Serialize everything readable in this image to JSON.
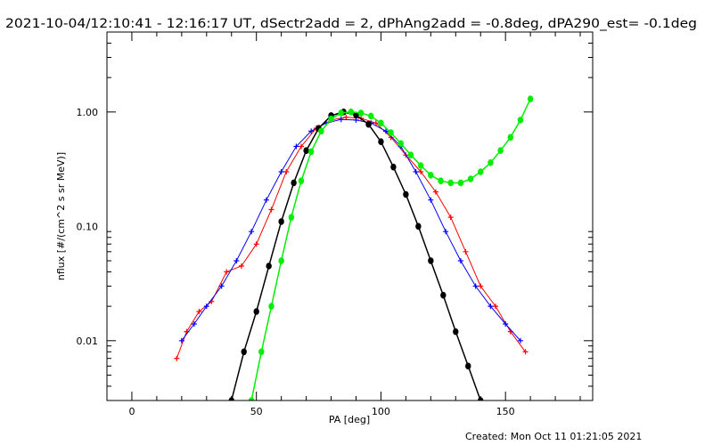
{
  "title": "2021-10-04/12:10:41 - 12:16:17 UT, dSectr2add = 2, dPhAng2add = -0.8deg, dPA290_est= -0.1deg",
  "footer": "Created: Mon Oct 11 01:21:05 2021",
  "chart_data": {
    "type": "line",
    "xlabel": "PA [deg]",
    "ylabel": "nflux [#/(cm^2 s sr MeV)]",
    "xlim": [
      -10,
      185
    ],
    "ylim": [
      0.003,
      5.0
    ],
    "y_scale": "log",
    "x_ticks": [
      0,
      50,
      100,
      150
    ],
    "x_tick_labels": [
      "0",
      "50",
      "100",
      "150"
    ],
    "y_ticks": [
      0.01,
      0.1,
      1.0
    ],
    "y_tick_labels": [
      "0.01",
      "0.10",
      "1.00"
    ],
    "grid": false,
    "legend": "none",
    "colors": {
      "red": "#ff0000",
      "blue": "#0000ff",
      "black": "#000000",
      "green": "#00ee00"
    },
    "series": [
      {
        "color": "red",
        "marker": "plus",
        "x": [
          18,
          22,
          27,
          32,
          38,
          44,
          50,
          56,
          62,
          68,
          74,
          80,
          86,
          92,
          98,
          104,
          110,
          116,
          122,
          128,
          134,
          140,
          146,
          152,
          158
        ],
        "y": [
          0.007,
          0.012,
          0.018,
          0.022,
          0.04,
          0.045,
          0.07,
          0.14,
          0.3,
          0.5,
          0.72,
          0.85,
          0.9,
          0.88,
          0.8,
          0.6,
          0.42,
          0.3,
          0.2,
          0.12,
          0.06,
          0.03,
          0.02,
          0.012,
          0.008
        ]
      },
      {
        "color": "blue",
        "marker": "plus",
        "x": [
          20,
          25,
          30,
          36,
          42,
          48,
          54,
          60,
          66,
          72,
          78,
          84,
          90,
          96,
          102,
          108,
          114,
          120,
          126,
          132,
          138,
          144,
          150,
          156
        ],
        "y": [
          0.01,
          0.014,
          0.02,
          0.03,
          0.05,
          0.09,
          0.17,
          0.3,
          0.5,
          0.68,
          0.8,
          0.86,
          0.85,
          0.8,
          0.68,
          0.5,
          0.3,
          0.17,
          0.09,
          0.05,
          0.03,
          0.02,
          0.014,
          0.01
        ]
      },
      {
        "color": "black",
        "marker": "dot",
        "x": [
          40,
          45,
          50,
          55,
          60,
          65,
          70,
          75,
          80,
          85,
          90,
          95,
          100,
          105,
          110,
          115,
          120,
          125,
          130,
          135,
          140
        ],
        "y": [
          0.003,
          0.008,
          0.018,
          0.045,
          0.11,
          0.24,
          0.46,
          0.72,
          0.93,
          1.0,
          0.94,
          0.78,
          0.55,
          0.33,
          0.19,
          0.1,
          0.05,
          0.025,
          0.012,
          0.006,
          0.003
        ]
      },
      {
        "color": "green",
        "marker": "dot",
        "x": [
          48,
          52,
          56,
          60,
          64,
          68,
          72,
          76,
          80,
          84,
          88,
          92,
          96,
          100,
          104,
          108,
          112,
          116,
          120,
          124,
          128,
          132,
          136,
          140,
          144,
          148,
          152,
          156,
          160
        ],
        "y": [
          0.003,
          0.008,
          0.02,
          0.05,
          0.12,
          0.25,
          0.45,
          0.68,
          0.87,
          0.98,
          1.0,
          0.98,
          0.92,
          0.8,
          0.66,
          0.53,
          0.42,
          0.34,
          0.28,
          0.25,
          0.24,
          0.24,
          0.26,
          0.3,
          0.36,
          0.46,
          0.6,
          0.85,
          1.3
        ]
      }
    ]
  }
}
